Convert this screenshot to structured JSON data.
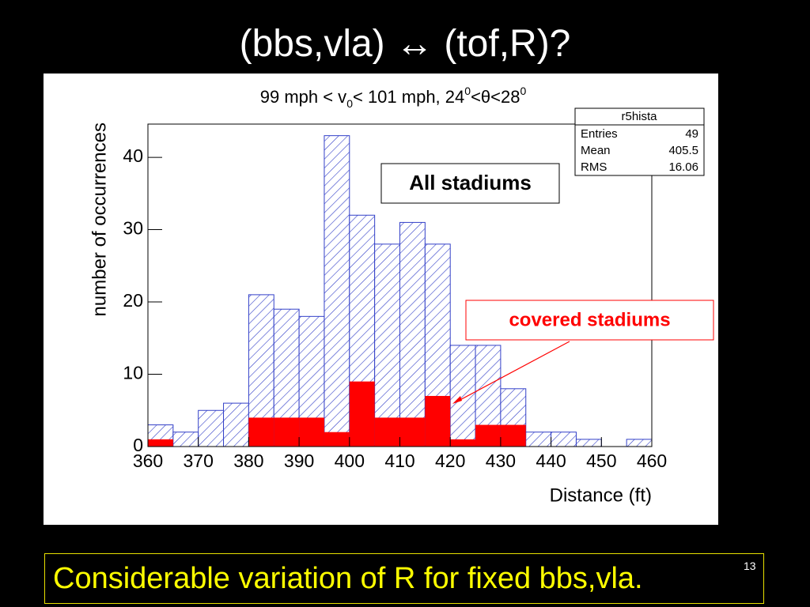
{
  "slide": {
    "title": "(bbs,vla) ↔ (tof,R)?",
    "footer": "Considerable variation of R for fixed bbs,vla.",
    "page_number": "13"
  },
  "chart_data": {
    "type": "histogram",
    "title_parts": [
      "99 mph < v",
      "0",
      "< 101 mph, 24",
      "0",
      "<θ<28",
      "0"
    ],
    "x_label": "Distance (ft)",
    "y_label": "number of occurrences",
    "bins": [
      360,
      365,
      370,
      375,
      380,
      385,
      390,
      395,
      400,
      405,
      410,
      415,
      420,
      425,
      430,
      435,
      440,
      445,
      450,
      455,
      460
    ],
    "series": [
      {
        "name": "All stadiums",
        "color": "#3340c8",
        "fill": "hatch",
        "values": [
          3,
          2,
          5,
          6,
          21,
          19,
          18,
          43,
          32,
          28,
          31,
          28,
          14,
          14,
          8,
          2,
          2,
          1,
          0,
          1
        ]
      },
      {
        "name": "covered stadiums",
        "color": "#ff0000",
        "fill": "solid",
        "values": [
          1,
          0,
          0,
          0,
          4,
          4,
          4,
          2,
          9,
          4,
          4,
          7,
          1,
          3,
          3,
          0,
          0,
          0,
          0,
          0
        ]
      }
    ],
    "xlim": [
      360,
      460
    ],
    "xticks": [
      360,
      370,
      380,
      390,
      400,
      410,
      420,
      430,
      440,
      450,
      460
    ],
    "ylim": [
      0,
      44.6
    ],
    "yticks": [
      0,
      10,
      20,
      30,
      40
    ],
    "stats": {
      "title": "r5hista",
      "rows": [
        {
          "label": "Entries",
          "value": 49
        },
        {
          "label": "Mean",
          "value": 405.5
        },
        {
          "label": "RMS",
          "value": 16.06
        }
      ]
    }
  }
}
